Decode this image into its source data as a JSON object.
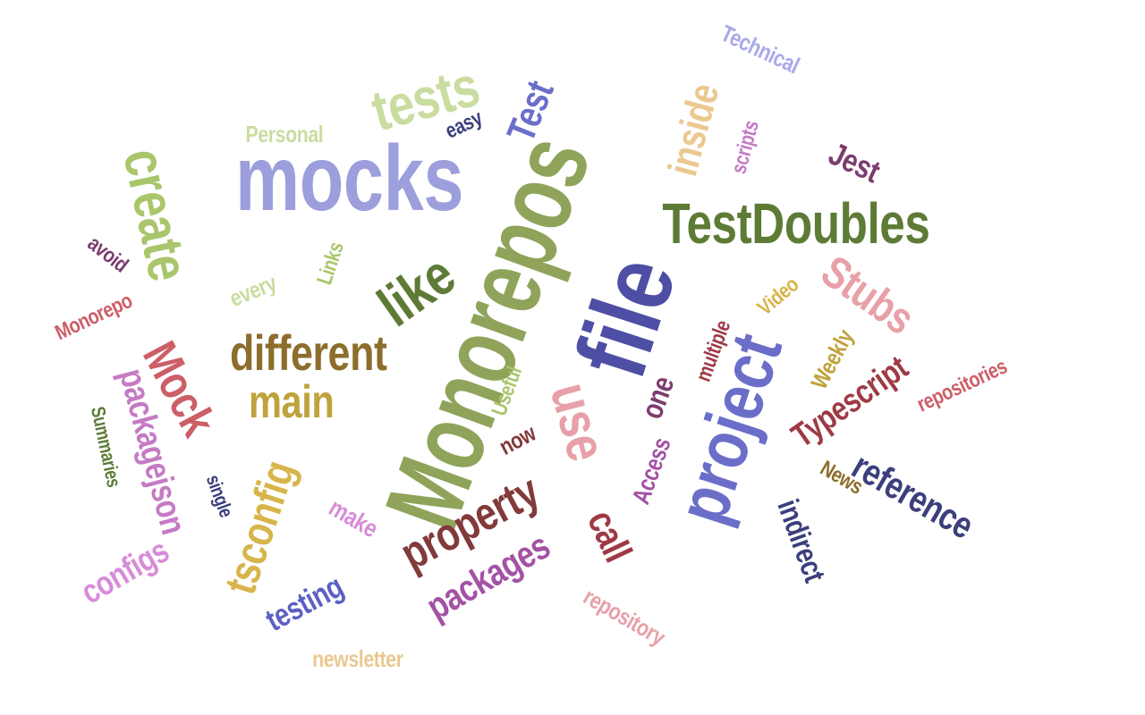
{
  "word_cloud": {
    "words": [
      {
        "text": "Monorepos",
        "color": "#8FA45A"
      },
      {
        "text": "mocks",
        "color": "#9C9FDC"
      },
      {
        "text": "file",
        "color": "#4E4FA4"
      },
      {
        "text": "tests",
        "color": "#C9DDA0"
      },
      {
        "text": "create",
        "color": "#A9C66B"
      },
      {
        "text": "TestDoubles",
        "color": "#5E7B36"
      },
      {
        "text": "like",
        "color": "#5E7B36"
      },
      {
        "text": "different",
        "color": "#8C6D2B"
      },
      {
        "text": "main",
        "color": "#BFA23C"
      },
      {
        "text": "project",
        "color": "#6B6EC9"
      },
      {
        "text": "property",
        "color": "#823A3A"
      },
      {
        "text": "use",
        "color": "#E8A0A8"
      },
      {
        "text": "tsconfig",
        "color": "#D7B54A"
      },
      {
        "text": "Mock",
        "color": "#CC5E68"
      },
      {
        "text": "packagejson",
        "color": "#C67AC4"
      },
      {
        "text": "Stubs",
        "color": "#E8A0A8"
      },
      {
        "text": "inside",
        "color": "#EAC890"
      },
      {
        "text": "Test",
        "color": "#6B6EC9"
      },
      {
        "text": "Jest",
        "color": "#7C3C6E"
      },
      {
        "text": "reference",
        "color": "#3B3F7C"
      },
      {
        "text": "indirect",
        "color": "#3B3F7C"
      },
      {
        "text": "Typescript",
        "color": "#9E3A45"
      },
      {
        "text": "packages",
        "color": "#A352A4"
      },
      {
        "text": "testing",
        "color": "#5C60C4"
      },
      {
        "text": "configs",
        "color": "#D88CD8"
      },
      {
        "text": "call",
        "color": "#9E3A45"
      },
      {
        "text": "one",
        "color": "#7C3C6E"
      },
      {
        "text": "Technical",
        "color": "#A7A9E8"
      },
      {
        "text": "scripts",
        "color": "#C67AC4"
      },
      {
        "text": "easy",
        "color": "#3B3F7C"
      },
      {
        "text": "Personal",
        "color": "#C9DDA0"
      },
      {
        "text": "avoid",
        "color": "#7C3C6E"
      },
      {
        "text": "every",
        "color": "#C9DDA0"
      },
      {
        "text": "Links",
        "color": "#A9C66B"
      },
      {
        "text": "Monorepo",
        "color": "#CC5E68"
      },
      {
        "text": "Summaries",
        "color": "#5E7B36"
      },
      {
        "text": "single",
        "color": "#3B3F7C"
      },
      {
        "text": "make",
        "color": "#D88CD8"
      },
      {
        "text": "now",
        "color": "#823A3A"
      },
      {
        "text": "Useful",
        "color": "#A9C66B"
      },
      {
        "text": "Access",
        "color": "#A352A4"
      },
      {
        "text": "multiple",
        "color": "#9E3A45"
      },
      {
        "text": "Video",
        "color": "#D7B54A"
      },
      {
        "text": "Weekly",
        "color": "#BFA23C"
      },
      {
        "text": "News",
        "color": "#8C6D2B"
      },
      {
        "text": "repositories",
        "color": "#CC5E68"
      },
      {
        "text": "repository",
        "color": "#E8A0A8"
      },
      {
        "text": "newsletter",
        "color": "#EAC890"
      }
    ]
  }
}
